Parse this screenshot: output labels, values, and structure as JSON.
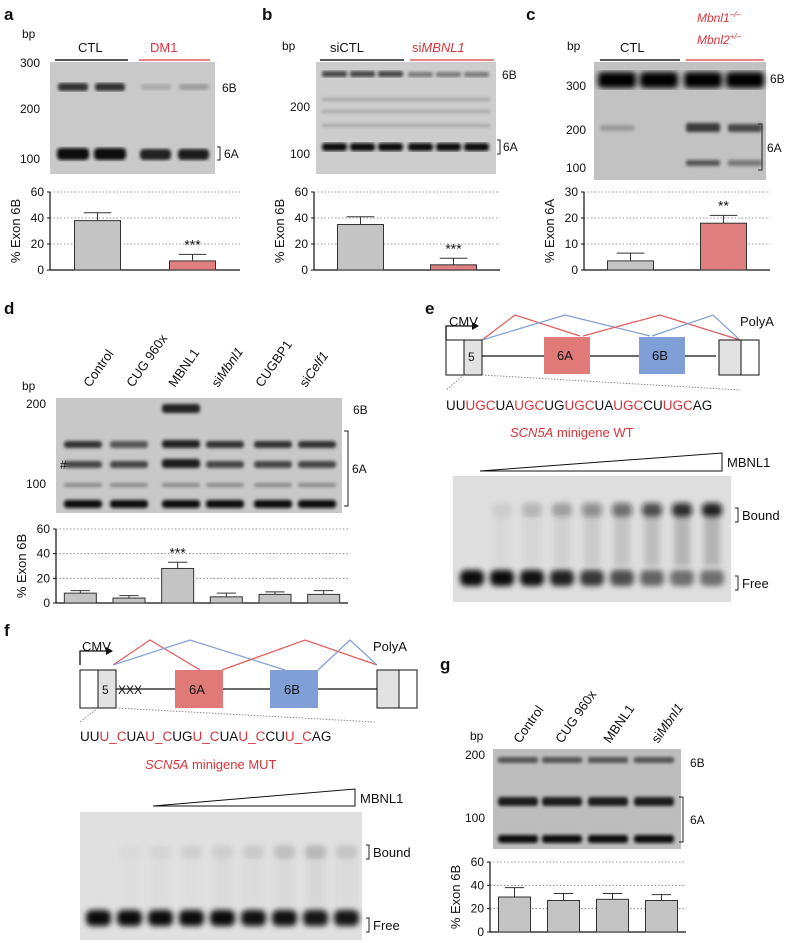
{
  "colors": {
    "gray_bar": "#c4c4c4",
    "red_bar": "#e07f7f",
    "exon_6A": "#df7a78",
    "exon_6B": "#7f9fd6",
    "red_text": "#d9343b",
    "red_line": "#e25b5b",
    "blue_line": "#7f9fd6"
  },
  "panel_a": {
    "letter": "a",
    "unit": "bp",
    "group_ctl": "CTL",
    "group_dm1": "DM1",
    "tick_300": "300",
    "tick_200": "200",
    "tick_100": "100",
    "band_6b": "6B",
    "band_6a": "6A",
    "chart_data": {
      "type": "bar",
      "categories": [
        "CTL",
        "DM1"
      ],
      "values": [
        38,
        7
      ],
      "errors": [
        6,
        5
      ],
      "ylabel": "% Exon 6B",
      "ylim": [
        0,
        60
      ],
      "yticks": [
        "0",
        "20",
        "40",
        "60"
      ],
      "significance": [
        "",
        "***"
      ]
    }
  },
  "panel_b": {
    "letter": "b",
    "unit": "bp",
    "group_ctl": "siCTL",
    "group_si_prefix": "si",
    "group_si_gene": "MBNL1",
    "tick_200": "200",
    "tick_100": "100",
    "band_6b": "6B",
    "band_6a": "6A",
    "chart_data": {
      "type": "bar",
      "categories": [
        "siCTL",
        "siMBNL1"
      ],
      "values": [
        35,
        4
      ],
      "errors": [
        6,
        5
      ],
      "ylabel": "% Exon 6B",
      "ylim": [
        0,
        60
      ],
      "yticks": [
        "0",
        "20",
        "40",
        "60"
      ],
      "significance": [
        "",
        "***"
      ]
    }
  },
  "panel_c": {
    "letter": "c",
    "unit": "bp",
    "group_ctl": "CTL",
    "genotype_1": "Mbnl1",
    "genotype_1_sup": "–/–",
    "genotype_2": "Mbnl2",
    "genotype_2_sup": "+/–",
    "tick_300": "300",
    "tick_200": "200",
    "tick_100": "100",
    "band_6b": "6B",
    "band_6a": "6A",
    "chart_data": {
      "type": "bar",
      "categories": [
        "CTL",
        "Mbnl1-/- Mbnl2+/-"
      ],
      "values": [
        3.5,
        18
      ],
      "errors": [
        3,
        3
      ],
      "ylabel": "% Exon 6A",
      "ylim": [
        0,
        30
      ],
      "yticks": [
        "0",
        "10",
        "20",
        "30"
      ],
      "significance": [
        "",
        "**"
      ]
    }
  },
  "panel_d": {
    "letter": "d",
    "unit": "bp",
    "lane_labels": [
      "Control",
      "CUG 960x",
      "MBNL1",
      "si",
      "CUGBP1",
      "si"
    ],
    "lane_si_mbnl1": "Mbnl1",
    "lane_si_celf1": "Celf1",
    "tick_200": "200",
    "tick_100": "100",
    "hash": "#",
    "band_6b": "6B",
    "band_6a": "6A",
    "chart_data": {
      "type": "bar",
      "categories": [
        "Control",
        "CUG 960x",
        "MBNL1",
        "siMbnl1",
        "CUGBP1",
        "siCelf1"
      ],
      "values": [
        8,
        4,
        28,
        5,
        7,
        7
      ],
      "errors": [
        2,
        2,
        5,
        3,
        2,
        3
      ],
      "ylabel": "% Exon 6B",
      "ylim": [
        0,
        60
      ],
      "yticks": [
        "0",
        "20",
        "40",
        "60"
      ],
      "significance": [
        "",
        "",
        "***",
        "",
        "",
        ""
      ]
    }
  },
  "panel_e": {
    "letter": "e",
    "promoter": "CMV",
    "polya": "PolyA",
    "exon5": "5",
    "exon6a": "6A",
    "exon6b": "6B",
    "seq": [
      "UU",
      "UGC",
      "UA",
      "UGC",
      "UG",
      "UGC",
      "UA",
      "UGC",
      "CU",
      "UGC",
      "AG"
    ],
    "caption_gene": "SCN5A",
    "caption_rest": " minigene WT",
    "titration": "MBNL1",
    "bound": "Bound",
    "free": "Free"
  },
  "panel_f": {
    "letter": "f",
    "promoter": "CMV",
    "polya": "PolyA",
    "exon5": "5",
    "mutation_mark": "XXX",
    "exon6a": "6A",
    "exon6b": "6B",
    "seq": [
      "UU",
      "U_C",
      "UA",
      "U_C",
      "UG",
      "U_C",
      "UA",
      "U_C",
      "CU",
      "U_C",
      "AG"
    ],
    "caption_gene": "SCN5A",
    "caption_rest": " minigene MUT",
    "titration": "MBNL1",
    "bound": "Bound",
    "free": "Free"
  },
  "panel_g": {
    "letter": "g",
    "unit": "bp",
    "lane_labels": [
      "Control",
      "CUG 960x",
      "MBNL1",
      "si"
    ],
    "lane_si_mbnl1": "Mbnl1",
    "tick_200": "200",
    "tick_100": "100",
    "band_6b": "6B",
    "band_6a": "6A",
    "chart_data": {
      "type": "bar",
      "categories": [
        "Control",
        "CUG 960x",
        "MBNL1",
        "siMbnl1"
      ],
      "values": [
        30,
        27,
        28,
        27
      ],
      "errors": [
        8,
        6,
        5,
        5
      ],
      "ylabel": "% Exon 6B",
      "ylim": [
        0,
        60
      ],
      "yticks": [
        "0",
        "20",
        "40",
        "60"
      ],
      "significance": [
        "",
        "",
        "",
        ""
      ]
    }
  }
}
